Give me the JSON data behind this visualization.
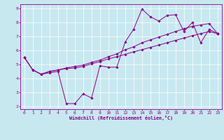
{
  "xlabel": "Windchill (Refroidissement éolien,°C)",
  "xlim": [
    -0.5,
    23.5
  ],
  "ylim": [
    1.8,
    9.3
  ],
  "xticks": [
    0,
    1,
    2,
    3,
    4,
    5,
    6,
    7,
    8,
    9,
    10,
    11,
    12,
    13,
    14,
    15,
    16,
    17,
    18,
    19,
    20,
    21,
    22,
    23
  ],
  "yticks": [
    2,
    3,
    4,
    5,
    6,
    7,
    8,
    9
  ],
  "bg_color": "#c8e8f0",
  "line_color": "#880088",
  "line1_x": [
    0,
    1,
    2,
    3,
    4,
    5,
    6,
    7,
    8,
    9,
    10,
    11,
    12,
    13,
    14,
    15,
    16,
    17,
    18,
    19,
    20,
    21,
    22,
    23
  ],
  "line1_y": [
    5.5,
    4.6,
    4.3,
    4.4,
    4.5,
    2.2,
    2.2,
    2.9,
    2.6,
    4.9,
    4.8,
    4.8,
    6.6,
    7.5,
    8.95,
    8.4,
    8.1,
    8.5,
    8.55,
    7.35,
    8.0,
    6.55,
    7.5,
    7.2
  ],
  "line2_x": [
    0,
    1,
    2,
    3,
    4,
    5,
    6,
    7,
    8,
    9,
    10,
    11,
    12,
    13,
    14,
    15,
    16,
    17,
    18,
    19,
    20,
    21,
    22,
    23
  ],
  "line2_y": [
    5.5,
    4.6,
    4.3,
    4.5,
    4.6,
    4.7,
    4.75,
    4.85,
    5.05,
    5.2,
    5.4,
    5.55,
    5.72,
    5.9,
    6.05,
    6.22,
    6.38,
    6.55,
    6.72,
    6.88,
    7.05,
    7.2,
    7.35,
    7.2
  ],
  "line3_x": [
    0,
    1,
    2,
    3,
    4,
    5,
    6,
    7,
    8,
    9,
    10,
    11,
    12,
    13,
    14,
    15,
    16,
    17,
    18,
    19,
    20,
    21,
    22,
    23
  ],
  "line3_y": [
    5.5,
    4.6,
    4.3,
    4.5,
    4.6,
    4.75,
    4.85,
    4.95,
    5.15,
    5.3,
    5.55,
    5.75,
    6.05,
    6.25,
    6.55,
    6.75,
    6.95,
    7.15,
    7.35,
    7.55,
    7.72,
    7.82,
    7.92,
    7.2
  ]
}
